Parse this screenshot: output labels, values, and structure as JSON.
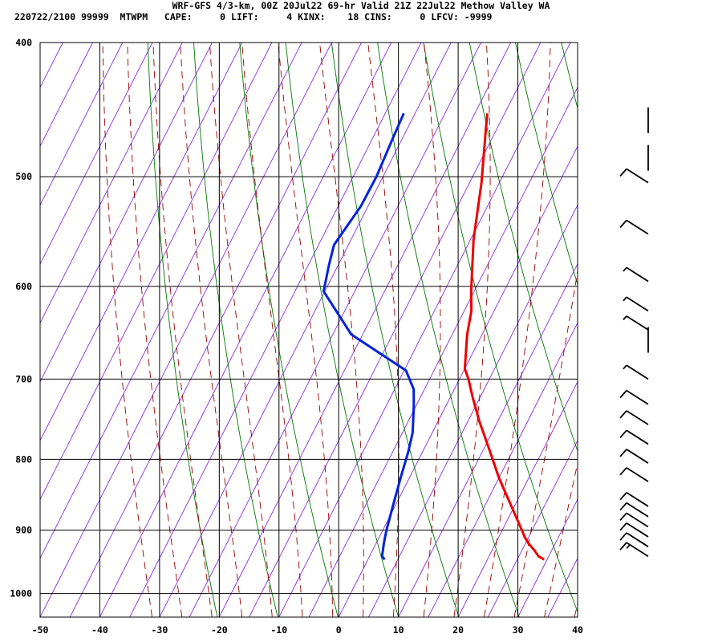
{
  "header": {
    "title": "WRF-GFS 4/3-km, 00Z 20Jul22 69-hr Valid 21Z 22Jul22 Methow Valley WA",
    "info": "220722/2100 99999  MTWPM   CAPE:     0 LIFT:     4 KINX:    18 CINS:     0 LFCV: -9999"
  },
  "chart_data": {
    "type": "skew-t",
    "xlim": [
      -50,
      40
    ],
    "ylim": [
      1040,
      400
    ],
    "x_ticks": [
      -50,
      -40,
      -30,
      -20,
      -10,
      0,
      10,
      20,
      30,
      40
    ],
    "x_tick_labels": [
      "-50",
      "-40",
      "-30",
      "-20",
      "-10",
      "0",
      "10",
      "20",
      "30",
      "40"
    ],
    "y_ticks": [
      400,
      500,
      600,
      700,
      800,
      900,
      1000
    ],
    "y_tick_labels": [
      "400",
      "500",
      "600",
      "700",
      "800",
      "900",
      "1000"
    ],
    "grid": true,
    "colors": {
      "temperature": "#ee0000",
      "dewpoint": "#0022dd",
      "isotherm": "#8a2be2",
      "dry_adiabat": "#007700",
      "moist_adiabat": "#990000",
      "barb": "#000000"
    },
    "series": [
      {
        "key": "temperature",
        "points": [
          [
            29.5,
            945
          ],
          [
            28.3,
            940
          ],
          [
            27,
            930
          ],
          [
            25.5,
            920
          ],
          [
            24.3,
            910
          ],
          [
            23.5,
            902
          ],
          [
            19.5,
            865
          ],
          [
            15,
            825
          ],
          [
            11.3,
            790
          ],
          [
            6.8,
            750
          ],
          [
            3.8,
            722
          ],
          [
            1.5,
            700
          ],
          [
            0,
            688
          ],
          [
            -2.5,
            650
          ],
          [
            -3.8,
            625
          ],
          [
            -5.5,
            605
          ],
          [
            -9.5,
            555
          ],
          [
            -13,
            505
          ],
          [
            -17,
            460
          ],
          [
            -17.9,
            450
          ]
        ]
      },
      {
        "key": "dewpoint",
        "points": [
          [
            2.8,
            945
          ],
          [
            2.1,
            940
          ],
          [
            1.3,
            920
          ],
          [
            0.6,
            900
          ],
          [
            -0.5,
            860
          ],
          [
            -1.6,
            820
          ],
          [
            -2.4,
            790
          ],
          [
            -3.3,
            765
          ],
          [
            -5.3,
            733
          ],
          [
            -6.8,
            712
          ],
          [
            -9.7,
            690
          ],
          [
            -21.9,
            650
          ],
          [
            -30.2,
            605
          ],
          [
            -31.5,
            580
          ],
          [
            -32.4,
            560
          ],
          [
            -31.2,
            525
          ],
          [
            -31.1,
            500
          ],
          [
            -31.6,
            470
          ],
          [
            -31.9,
            450
          ]
        ]
      }
    ],
    "wind_barbs": [
      {
        "p": 940,
        "pr": 15
      },
      {
        "p": 925,
        "pr": 10
      },
      {
        "p": 910,
        "pr": 10
      },
      {
        "p": 895,
        "pr": 10
      },
      {
        "p": 880,
        "pr": 10
      },
      {
        "p": 865,
        "pr": 10
      },
      {
        "p": 830,
        "pr": 10
      },
      {
        "p": 805,
        "pr": 10
      },
      {
        "p": 780,
        "pr": 10
      },
      {
        "p": 755,
        "pr": 10
      },
      {
        "p": 730,
        "pr": 10
      },
      {
        "p": 700,
        "pr": 5
      },
      {
        "p": 670,
        "pr": 0
      },
      {
        "p": 645,
        "pr": 5
      },
      {
        "p": 625,
        "pr": 5
      },
      {
        "p": 595,
        "pr": 5
      },
      {
        "p": 550,
        "pr": 10
      },
      {
        "p": 505,
        "pr": 10
      },
      {
        "p": 495,
        "pr": 0
      },
      {
        "p": 465,
        "pr": 0
      }
    ]
  }
}
